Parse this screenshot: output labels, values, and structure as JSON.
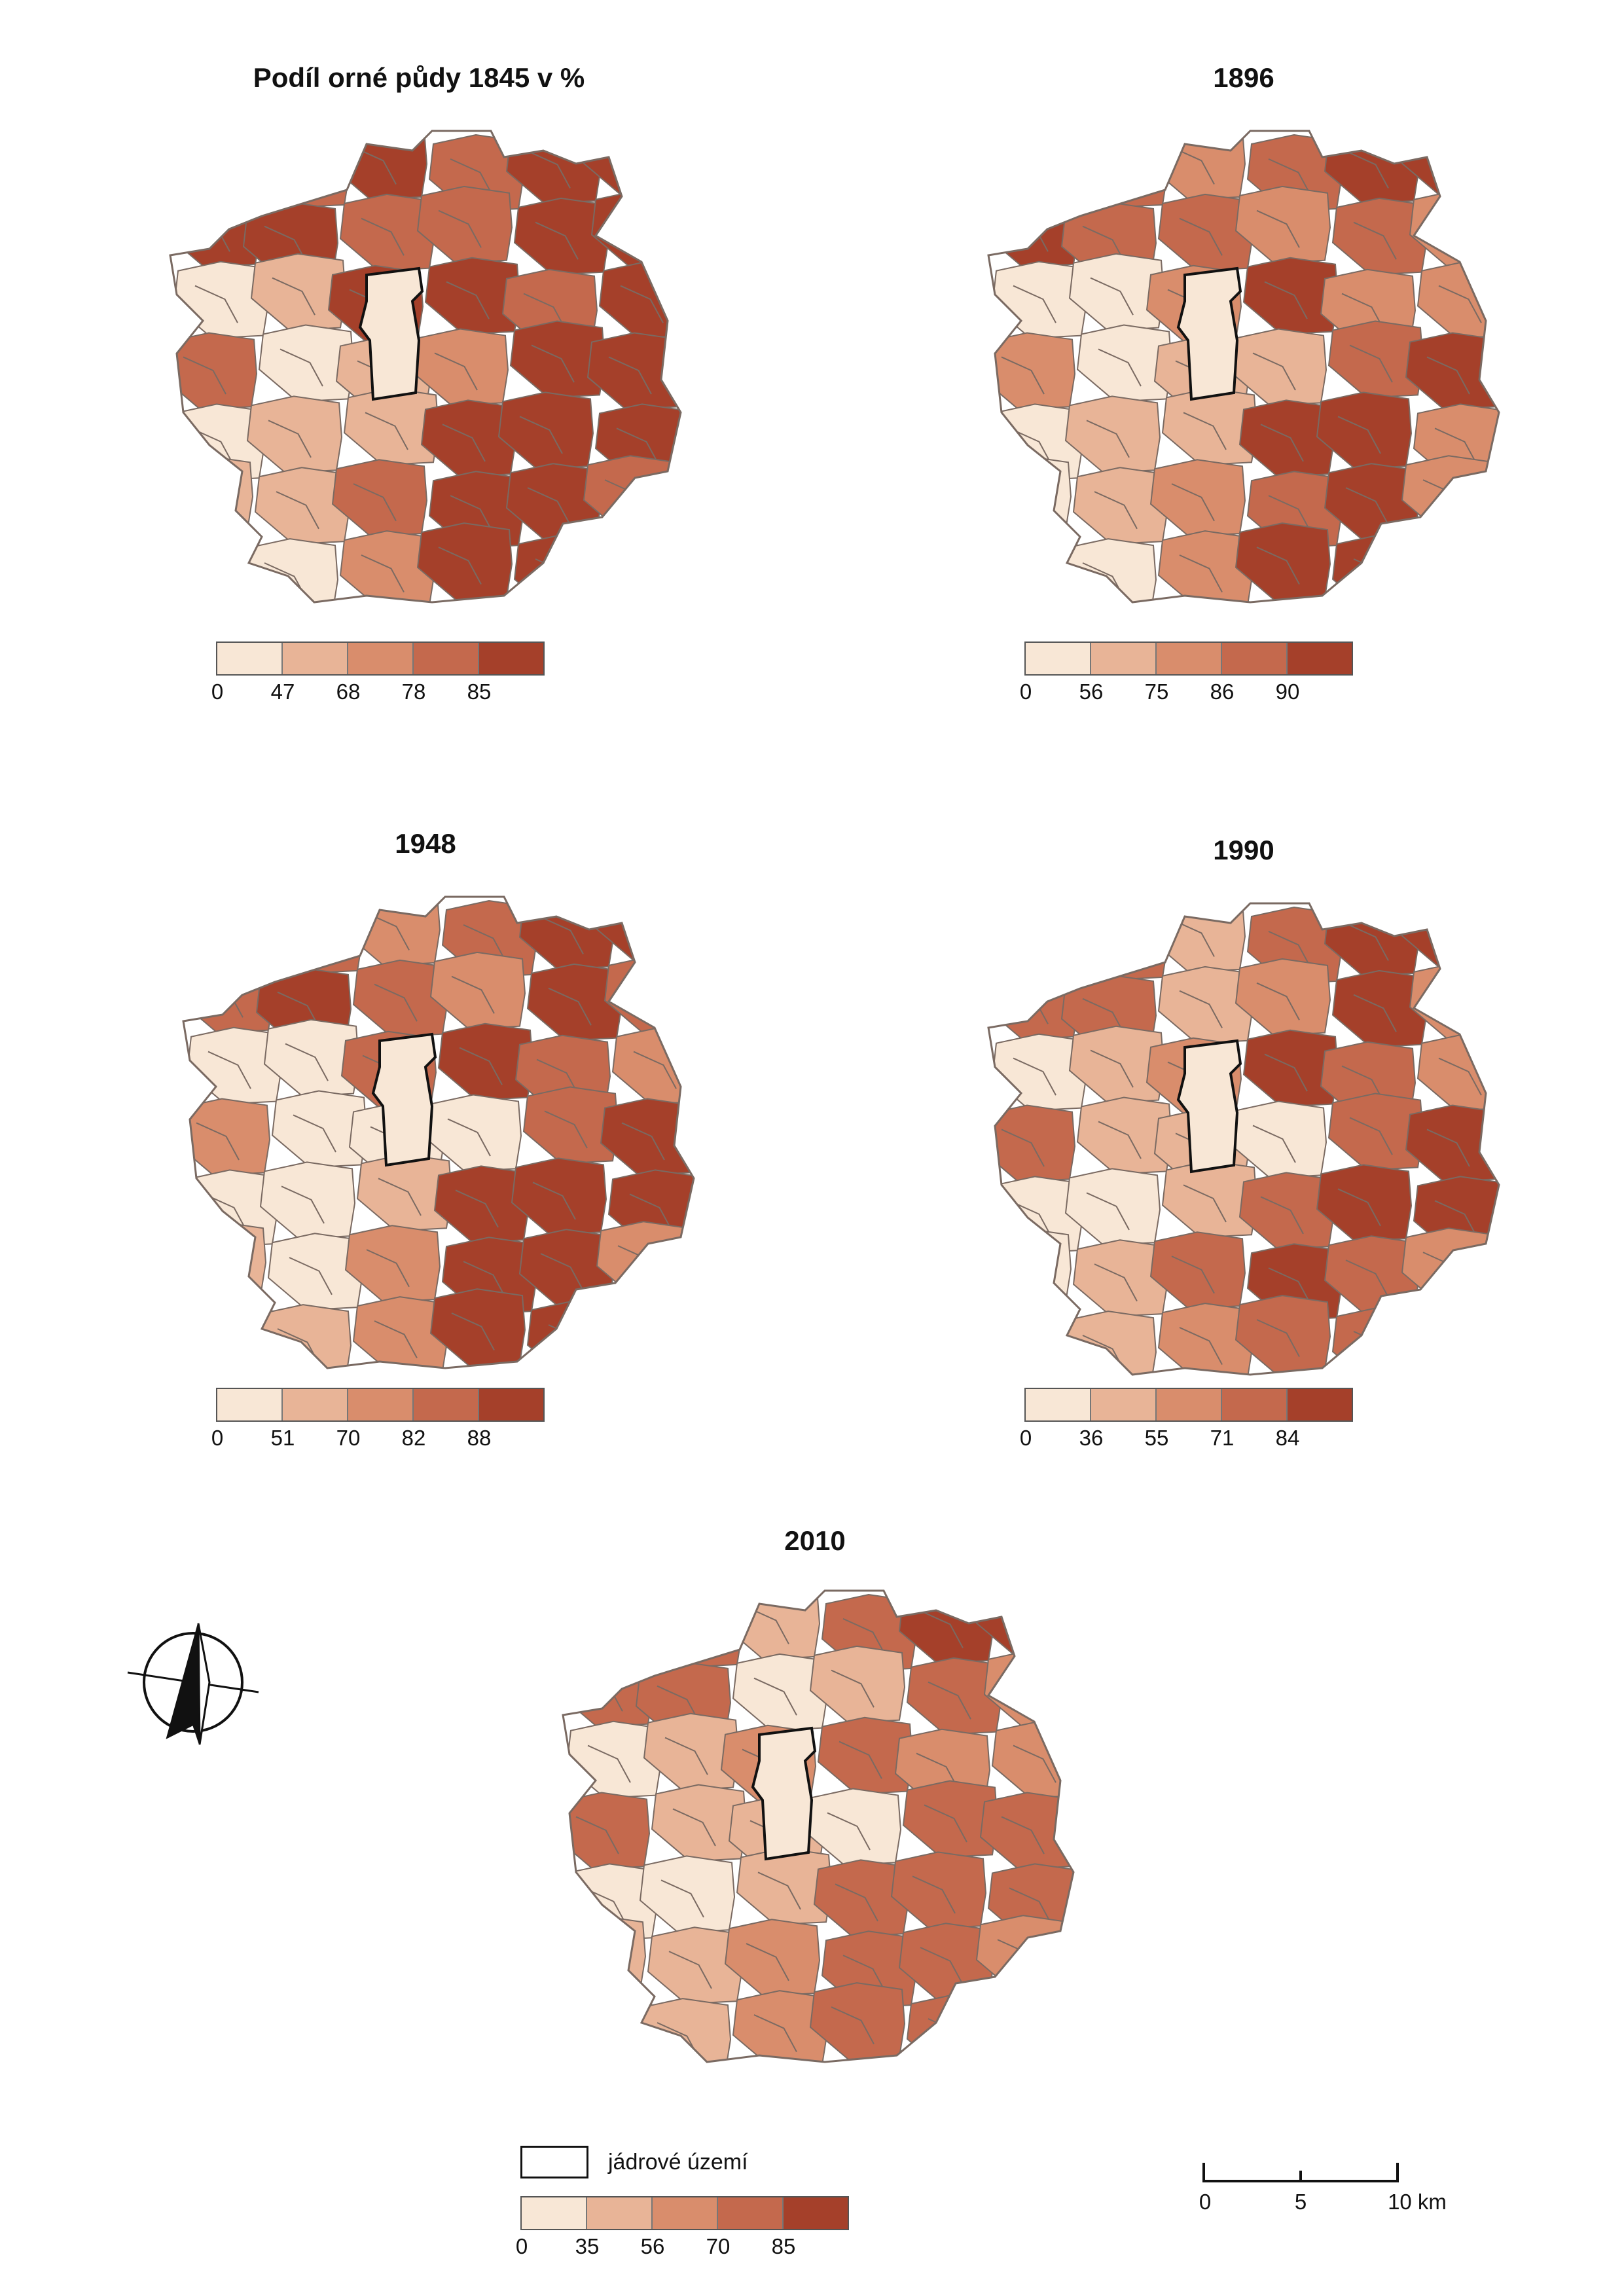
{
  "colors": {
    "class1": "#f8e7d6",
    "class2": "#e8b497",
    "class3": "#d98d6c",
    "class4": "#c4694d",
    "class5": "#a5402a",
    "border": "#7a6a62",
    "core_fill": "#f8e7d6",
    "core_border": "#111111"
  },
  "maps": [
    {
      "title": "Podíl orné půdy 1845 v %",
      "breaks": [
        "0",
        "47",
        "68",
        "78",
        "85"
      ]
    },
    {
      "title": "1896",
      "breaks": [
        "0",
        "56",
        "75",
        "86",
        "90"
      ]
    },
    {
      "title": "1948",
      "breaks": [
        "0",
        "51",
        "70",
        "82",
        "88"
      ]
    },
    {
      "title": "1990",
      "breaks": [
        "0",
        "36",
        "55",
        "71",
        "84"
      ]
    },
    {
      "title": "2010",
      "breaks": [
        "0",
        "35",
        "56",
        "70",
        "85"
      ]
    }
  ],
  "core_legend": {
    "label": "jádrové území"
  },
  "scalebar": {
    "labels": [
      "0",
      "5",
      "10 km"
    ]
  },
  "icons": {
    "north_arrow": "north-arrow-icon"
  }
}
